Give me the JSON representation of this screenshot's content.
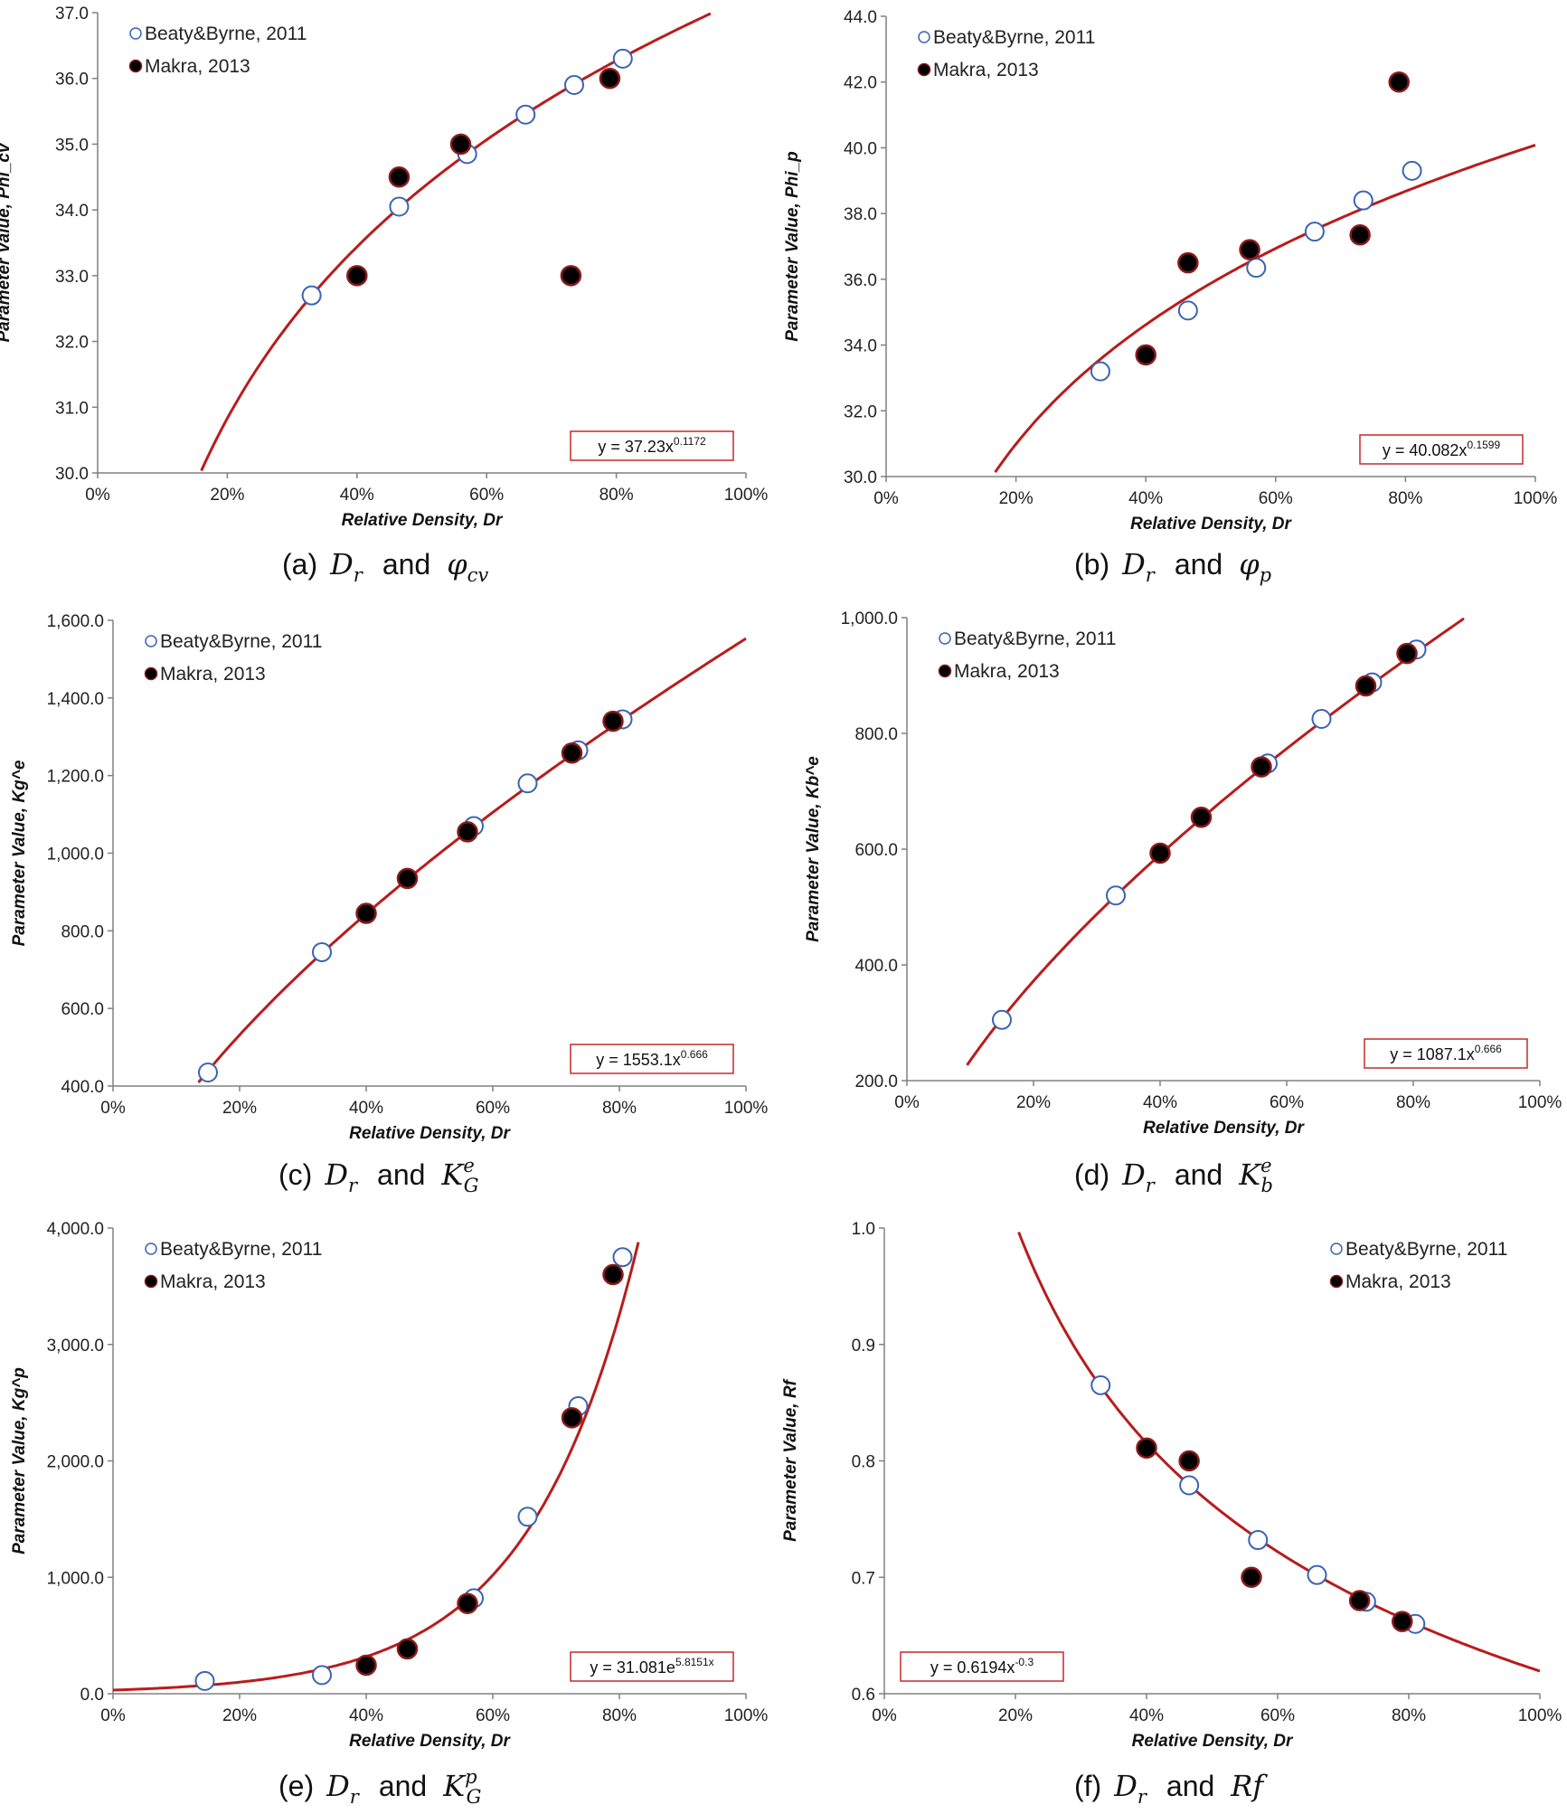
{
  "colors": {
    "fit_line": "#b81c1c",
    "beaty_marker": "#3a63b5",
    "makra_marker": "#000000",
    "makra_marker_edge": "#8a1a1a",
    "equation_border": "#c62828",
    "axis": "#808080"
  },
  "chart_data": [
    {
      "panel": "a",
      "type": "scatter",
      "caption": {
        "label": "(a)",
        "x_var": "D",
        "x_sub": "r",
        "connector": "and",
        "y_var": "φ",
        "y_sub": "cv",
        "y_sup": ""
      },
      "xlabel": "Relative Density, Dr",
      "ylabel": "Parameter Value, Phi_cv",
      "xlim": [
        0,
        1
      ],
      "ylim": [
        30,
        37
      ],
      "xticks": [
        0,
        0.2,
        0.4,
        0.6,
        0.8,
        1.0
      ],
      "xtick_labels": [
        "0%",
        "20%",
        "40%",
        "60%",
        "80%",
        "100%"
      ],
      "yticks": [
        30,
        31,
        32,
        33,
        34,
        35,
        36,
        37
      ],
      "ytick_labels": [
        "30.0",
        "31.0",
        "32.0",
        "33.0",
        "34.0",
        "35.0",
        "36.0",
        "37.0"
      ],
      "legend_position": "top-left",
      "equation_position": "bottom-right",
      "series": [
        {
          "name": "Beaty&Byrne, 2011",
          "marker": "open",
          "x": [
            0.33,
            0.465,
            0.57,
            0.66,
            0.735,
            0.81
          ],
          "y": [
            32.7,
            34.05,
            34.85,
            35.45,
            35.9,
            36.3
          ]
        },
        {
          "name": "Makra, 2013",
          "marker": "filled",
          "x": [
            0.4,
            0.465,
            0.56,
            0.73,
            0.79
          ],
          "y": [
            33.0,
            34.5,
            35.0,
            33.0,
            36.0
          ]
        }
      ],
      "fit": {
        "model": "power",
        "a": 37.23,
        "b": 0.1172,
        "x_range": [
          0.16,
          1.0
        ],
        "eq_base": "y = 37.23x",
        "eq_exp": "0.1172"
      }
    },
    {
      "panel": "b",
      "type": "scatter",
      "caption": {
        "label": "(b)",
        "x_var": "D",
        "x_sub": "r",
        "connector": "and",
        "y_var": "φ",
        "y_sub": "p",
        "y_sup": ""
      },
      "xlabel": "Relative Density, Dr",
      "ylabel": "Parameter Value, Phi_p",
      "xlim": [
        0,
        1
      ],
      "ylim": [
        30,
        44
      ],
      "xticks": [
        0,
        0.2,
        0.4,
        0.6,
        0.8,
        1.0
      ],
      "xtick_labels": [
        "0%",
        "20%",
        "40%",
        "60%",
        "80%",
        "100%"
      ],
      "yticks": [
        30,
        32,
        34,
        36,
        38,
        40,
        42,
        44
      ],
      "ytick_labels": [
        "30.0",
        "32.0",
        "34.0",
        "36.0",
        "38.0",
        "40.0",
        "42.0",
        "44.0"
      ],
      "legend_position": "top-left",
      "equation_position": "bottom-right",
      "series": [
        {
          "name": "Beaty&Byrne, 2011",
          "marker": "open",
          "x": [
            0.33,
            0.465,
            0.57,
            0.66,
            0.735,
            0.81
          ],
          "y": [
            33.2,
            35.05,
            36.35,
            37.45,
            38.4,
            39.3
          ]
        },
        {
          "name": "Makra, 2013",
          "marker": "filled",
          "x": [
            0.4,
            0.465,
            0.56,
            0.73,
            0.79
          ],
          "y": [
            33.7,
            36.5,
            36.9,
            37.35,
            42.0
          ]
        }
      ],
      "fit": {
        "model": "power",
        "a": 40.082,
        "b": 0.1599,
        "x_range": [
          0.168,
          1.0
        ],
        "eq_base": "y = 40.082x",
        "eq_exp": "0.1599"
      }
    },
    {
      "panel": "c",
      "type": "scatter",
      "caption": {
        "label": "(c)",
        "x_var": "D",
        "x_sub": "r",
        "connector": "and",
        "y_var": "K",
        "y_sub": "G",
        "y_sup": "e"
      },
      "xlabel": "Relative Density, Dr",
      "ylabel": "Parameter Value, Kg^e",
      "xlim": [
        0,
        1
      ],
      "ylim": [
        400,
        1600
      ],
      "xticks": [
        0,
        0.2,
        0.4,
        0.6,
        0.8,
        1.0
      ],
      "xtick_labels": [
        "0%",
        "20%",
        "40%",
        "60%",
        "80%",
        "100%"
      ],
      "yticks": [
        400,
        600,
        800,
        1000,
        1200,
        1400,
        1600
      ],
      "ytick_labels": [
        "400.0",
        "600.0",
        "800.0",
        "1,000.0",
        "1,200.0",
        "1,400.0",
        "1,600.0"
      ],
      "legend_position": "top-left",
      "equation_position": "bottom-right",
      "series": [
        {
          "name": "Beaty&Byrne, 2011",
          "marker": "open",
          "x": [
            0.15,
            0.33,
            0.57,
            0.655,
            0.735,
            0.805
          ],
          "y": [
            435,
            745,
            1070,
            1180,
            1265,
            1345
          ]
        },
        {
          "name": "Makra, 2013",
          "marker": "filled",
          "x": [
            0.4,
            0.465,
            0.56,
            0.725,
            0.79
          ],
          "y": [
            845,
            935,
            1055,
            1258,
            1340
          ]
        }
      ],
      "fit": {
        "model": "power",
        "a": 1553.1,
        "b": 0.666,
        "x_range": [
          0.135,
          1.0
        ],
        "eq_base": "y = 1553.1x",
        "eq_exp": "0.666"
      }
    },
    {
      "panel": "d",
      "type": "scatter",
      "caption": {
        "label": "(d)",
        "x_var": "D",
        "x_sub": "r",
        "connector": "and",
        "y_var": "K",
        "y_sub": "b",
        "y_sup": "e"
      },
      "xlabel": "Relative Density, Dr",
      "ylabel": "Parameter Value, Kb^e",
      "xlim": [
        0,
        1
      ],
      "ylim": [
        200,
        1000
      ],
      "xticks": [
        0,
        0.2,
        0.4,
        0.6,
        0.8,
        1.0
      ],
      "xtick_labels": [
        "0%",
        "20%",
        "40%",
        "60%",
        "80%",
        "100%"
      ],
      "yticks": [
        200,
        400,
        600,
        800,
        1000
      ],
      "ytick_labels": [
        "200.0",
        "400.0",
        "600.0",
        "800.0",
        "1,000.0"
      ],
      "legend_position": "top-left",
      "equation_position": "bottom-right",
      "series": [
        {
          "name": "Beaty&Byrne, 2011",
          "marker": "open",
          "x": [
            0.15,
            0.33,
            0.57,
            0.655,
            0.735,
            0.805
          ],
          "y": [
            305,
            520,
            748,
            825,
            888,
            945
          ]
        },
        {
          "name": "Makra, 2013",
          "marker": "filled",
          "x": [
            0.4,
            0.465,
            0.56,
            0.725,
            0.79
          ],
          "y": [
            593,
            655,
            742,
            882,
            938
          ]
        }
      ],
      "fit": {
        "model": "power",
        "a": 1087.1,
        "b": 0.666,
        "x_range": [
          0.095,
          0.88
        ],
        "eq_base": "y = 1087.1x",
        "eq_exp": "0.666"
      }
    },
    {
      "panel": "e",
      "type": "scatter",
      "caption": {
        "label": "(e)",
        "x_var": "D",
        "x_sub": "r",
        "connector": "and",
        "y_var": "K",
        "y_sub": "G",
        "y_sup": "p"
      },
      "xlabel": "Relative Density, Dr",
      "ylabel": "Parameter Value, Kg^p",
      "xlim": [
        0,
        1
      ],
      "ylim": [
        0,
        4000
      ],
      "xticks": [
        0,
        0.2,
        0.4,
        0.6,
        0.8,
        1.0
      ],
      "xtick_labels": [
        "0%",
        "20%",
        "40%",
        "60%",
        "80%",
        "100%"
      ],
      "yticks": [
        0,
        1000,
        2000,
        3000,
        4000
      ],
      "ytick_labels": [
        "0.0",
        "1,000.0",
        "2,000.0",
        "3,000.0",
        "4,000.0"
      ],
      "legend_position": "top-left",
      "equation_position": "bottom-right",
      "series": [
        {
          "name": "Beaty&Byrne, 2011",
          "marker": "open",
          "x": [
            0.145,
            0.33,
            0.57,
            0.655,
            0.735,
            0.805
          ],
          "y": [
            110,
            160,
            820,
            1520,
            2470,
            3750
          ]
        },
        {
          "name": "Makra, 2013",
          "marker": "filled",
          "x": [
            0.4,
            0.465,
            0.56,
            0.725,
            0.79
          ],
          "y": [
            245,
            385,
            775,
            2370,
            3600
          ]
        }
      ],
      "fit": {
        "model": "exponential",
        "a": 31.081,
        "b": 5.8151,
        "x_range": [
          0.0,
          0.83
        ],
        "eq_base": "y = 31.081e",
        "eq_exp": "5.8151x"
      }
    },
    {
      "panel": "f",
      "type": "scatter",
      "caption": {
        "label": "(f)",
        "x_var": "D",
        "x_sub": "r",
        "connector": "and",
        "y_var": "Rf",
        "y_sub": "",
        "y_sup": ""
      },
      "xlabel": "Relative Density, Dr",
      "ylabel": "Parameter Value, Rf",
      "xlim": [
        0,
        1
      ],
      "ylim": [
        0.6,
        1.0
      ],
      "xticks": [
        0,
        0.2,
        0.4,
        0.6,
        0.8,
        1.0
      ],
      "xtick_labels": [
        "0%",
        "20%",
        "40%",
        "60%",
        "80%",
        "100%"
      ],
      "yticks": [
        0.6,
        0.7,
        0.8,
        0.9,
        1.0
      ],
      "ytick_labels": [
        "0.6",
        "0.7",
        "0.8",
        "0.9",
        "1.0"
      ],
      "legend_position": "top-right",
      "equation_position": "bottom-left",
      "series": [
        {
          "name": "Beaty&Byrne, 2011",
          "marker": "open",
          "x": [
            0.33,
            0.465,
            0.57,
            0.66,
            0.735,
            0.81
          ],
          "y": [
            0.865,
            0.779,
            0.732,
            0.702,
            0.679,
            0.66
          ]
        },
        {
          "name": "Makra, 2013",
          "marker": "filled",
          "x": [
            0.4,
            0.465,
            0.56,
            0.725,
            0.79
          ],
          "y": [
            0.811,
            0.8,
            0.7,
            0.68,
            0.662
          ]
        }
      ],
      "fit": {
        "model": "power",
        "a": 0.6194,
        "b": -0.3,
        "x_range": [
          0.205,
          1.0
        ],
        "eq_base": "y = 0.6194x",
        "eq_exp": "-0.3"
      }
    }
  ]
}
